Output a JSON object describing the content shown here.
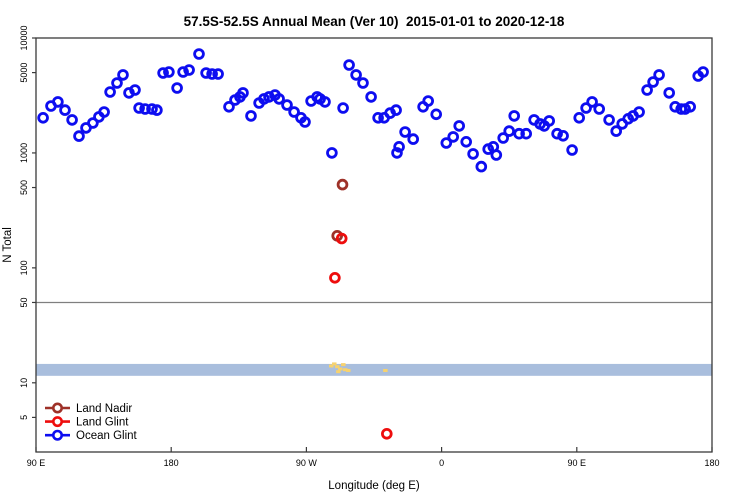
{
  "chart_data": {
    "type": "scatter",
    "title": "57.5S-52.5S Annual Mean (Ver 10)  2015-01-01 to 2020-12-18",
    "xlabel": "Longitude (deg E)",
    "ylabel": "N Total",
    "x_axis": {
      "range": [
        90,
        540
      ],
      "ticks": [
        {
          "lon": 90,
          "label": "90 E"
        },
        {
          "lon": 180,
          "label": "180"
        },
        {
          "lon": 270,
          "label": "90 W"
        },
        {
          "lon": 360,
          "label": "0"
        },
        {
          "lon": 450,
          "label": "90 E"
        },
        {
          "lon": 540,
          "label": "180"
        }
      ]
    },
    "y_axis": {
      "scale": "log",
      "range": [
        2.5,
        10000
      ],
      "ticks": [
        {
          "v": 5,
          "label": "5"
        },
        {
          "v": 10,
          "label": "10"
        },
        {
          "v": 50,
          "label": "50"
        },
        {
          "v": 100,
          "label": "100"
        },
        {
          "v": 500,
          "label": "500"
        },
        {
          "v": 1000,
          "label": "1000"
        },
        {
          "v": 5000,
          "label": "5000"
        },
        {
          "v": 10000,
          "label": "10000"
        }
      ]
    },
    "ref_line": {
      "value": 50,
      "color": "#7f7f7f"
    },
    "band": {
      "from": 11.5,
      "to": 14.6,
      "color": "#a9bedd"
    },
    "anomaly_marks": {
      "color": "#f7d26e",
      "points": [
        [
          286.4,
          14.0
        ],
        [
          288.4,
          14.6
        ],
        [
          290.4,
          13.8
        ],
        [
          291.1,
          12.5
        ],
        [
          292.4,
          13.2
        ],
        [
          294.4,
          14.4
        ],
        [
          295.7,
          13.0
        ],
        [
          297.7,
          12.8
        ],
        [
          322.4,
          12.8
        ]
      ]
    },
    "series": [
      {
        "name": "Land Nadir",
        "color": "#9e3128",
        "points": [
          [
            294,
            530
          ],
          [
            290.5,
            190
          ]
        ]
      },
      {
        "name": "Land Glint",
        "color": "#ee0d0d",
        "points": [
          [
            293.5,
            180
          ],
          [
            289,
            82
          ],
          [
            323.5,
            3.6
          ]
        ]
      },
      {
        "name": "Ocean Glint",
        "color": "#0d0df0",
        "points": [
          [
            94.7,
            2020
          ],
          [
            100,
            2560
          ],
          [
            104.6,
            2780
          ],
          [
            109.3,
            2360
          ],
          [
            114,
            1940
          ],
          [
            118.6,
            1400
          ],
          [
            123.3,
            1650
          ],
          [
            127.9,
            1820
          ],
          [
            131.9,
            2060
          ],
          [
            135.3,
            2270
          ],
          [
            139.3,
            3390
          ],
          [
            143.9,
            4060
          ],
          [
            147.9,
            4770
          ],
          [
            151.9,
            3330
          ],
          [
            155.9,
            3530
          ],
          [
            158.6,
            2460
          ],
          [
            162.6,
            2410
          ],
          [
            167.2,
            2410
          ],
          [
            170.5,
            2360
          ],
          [
            174.6,
            4960
          ],
          [
            178.5,
            5060
          ],
          [
            183.9,
            3670
          ],
          [
            187.9,
            5060
          ],
          [
            191.9,
            5270
          ],
          [
            198.5,
            7260
          ],
          [
            203.2,
            4960
          ],
          [
            207.2,
            4860
          ],
          [
            211.2,
            4860
          ],
          [
            218.5,
            2520
          ],
          [
            222.5,
            2890
          ],
          [
            225.8,
            3070
          ],
          [
            227.8,
            3330
          ],
          [
            233.1,
            2100
          ],
          [
            238.5,
            2720
          ],
          [
            241.8,
            2950
          ],
          [
            245.1,
            3070
          ],
          [
            249.1,
            3190
          ],
          [
            251.8,
            2950
          ],
          [
            257.1,
            2610
          ],
          [
            261.8,
            2270
          ],
          [
            266.4,
            2020
          ],
          [
            269.1,
            1860
          ],
          [
            273.1,
            2830
          ],
          [
            277.1,
            3070
          ],
          [
            279.1,
            2950
          ],
          [
            282.4,
            2780
          ],
          [
            287,
            1000
          ],
          [
            294.4,
            2460
          ],
          [
            298.4,
            5820
          ],
          [
            303.1,
            4770
          ],
          [
            307.7,
            4060
          ],
          [
            313.1,
            3070
          ],
          [
            317.7,
            2020
          ],
          [
            321.7,
            2020
          ],
          [
            325.7,
            2220
          ],
          [
            329.7,
            2360
          ],
          [
            330.3,
            1000
          ],
          [
            331.7,
            1130
          ],
          [
            335.7,
            1520
          ],
          [
            341.1,
            1320
          ],
          [
            347.7,
            2520
          ],
          [
            351.1,
            2830
          ],
          [
            356.4,
            2170
          ],
          [
            363.1,
            1220
          ],
          [
            367.7,
            1380
          ],
          [
            371.7,
            1720
          ],
          [
            376.4,
            1250
          ],
          [
            381,
            980
          ],
          [
            386.4,
            760
          ],
          [
            391,
            1080
          ],
          [
            394.4,
            1130
          ],
          [
            396.4,
            960
          ],
          [
            401,
            1350
          ],
          [
            405,
            1550
          ],
          [
            408.3,
            2100
          ],
          [
            411.6,
            1470
          ],
          [
            416.3,
            1470
          ],
          [
            421.6,
            1940
          ],
          [
            425.6,
            1790
          ],
          [
            428.3,
            1720
          ],
          [
            431.6,
            1900
          ],
          [
            436.9,
            1470
          ],
          [
            440.9,
            1410
          ],
          [
            446.9,
            1060
          ],
          [
            451.6,
            2020
          ],
          [
            456.2,
            2460
          ],
          [
            460.2,
            2780
          ],
          [
            464.9,
            2410
          ],
          [
            471.5,
            1940
          ],
          [
            476.2,
            1550
          ],
          [
            480.2,
            1790
          ],
          [
            484.2,
            1980
          ],
          [
            487.5,
            2100
          ],
          [
            491.5,
            2270
          ],
          [
            496.8,
            3530
          ],
          [
            500.8,
            4140
          ],
          [
            504.8,
            4770
          ],
          [
            511.5,
            3330
          ],
          [
            515.5,
            2520
          ],
          [
            519.5,
            2410
          ],
          [
            522.1,
            2410
          ],
          [
            525.5,
            2520
          ],
          [
            530.8,
            4670
          ],
          [
            534.1,
            5060
          ]
        ]
      }
    ],
    "legend_position": "bottom-left",
    "grid": "off"
  }
}
